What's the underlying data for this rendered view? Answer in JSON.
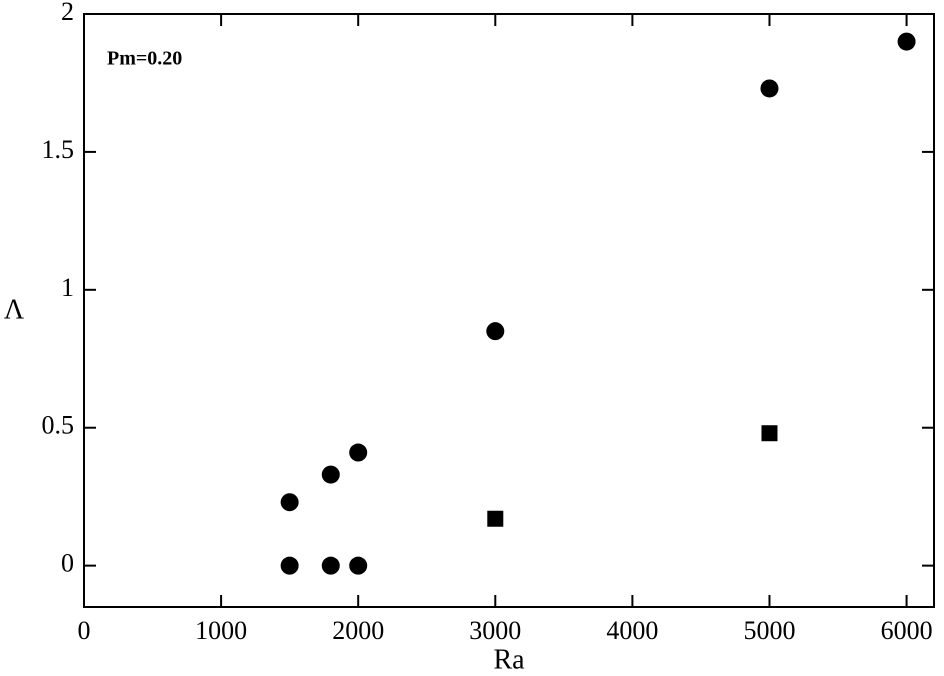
{
  "chart_data": {
    "type": "scatter",
    "x_label": "Ra",
    "y_label": "Λ",
    "annotation": "Pm=0.20",
    "series": [
      {
        "marker": "circle",
        "color": "#000000",
        "x": [
          1500,
          1800,
          2000,
          3000,
          5000,
          6000,
          1500,
          1800,
          2000
        ],
        "values": [
          0.23,
          0.33,
          0.41,
          0.85,
          1.73,
          1.9,
          0,
          0,
          0
        ]
      },
      {
        "marker": "square",
        "color": "#000000",
        "x": [
          3000,
          5000
        ],
        "values": [
          0.17,
          0.48
        ]
      }
    ],
    "xlim": [
      0,
      6200
    ],
    "ylim": [
      -0.15,
      2
    ],
    "xticks": [
      0,
      1000,
      2000,
      3000,
      4000,
      5000,
      6000
    ],
    "yticks": [
      0,
      0.5,
      1,
      1.5,
      2
    ]
  }
}
